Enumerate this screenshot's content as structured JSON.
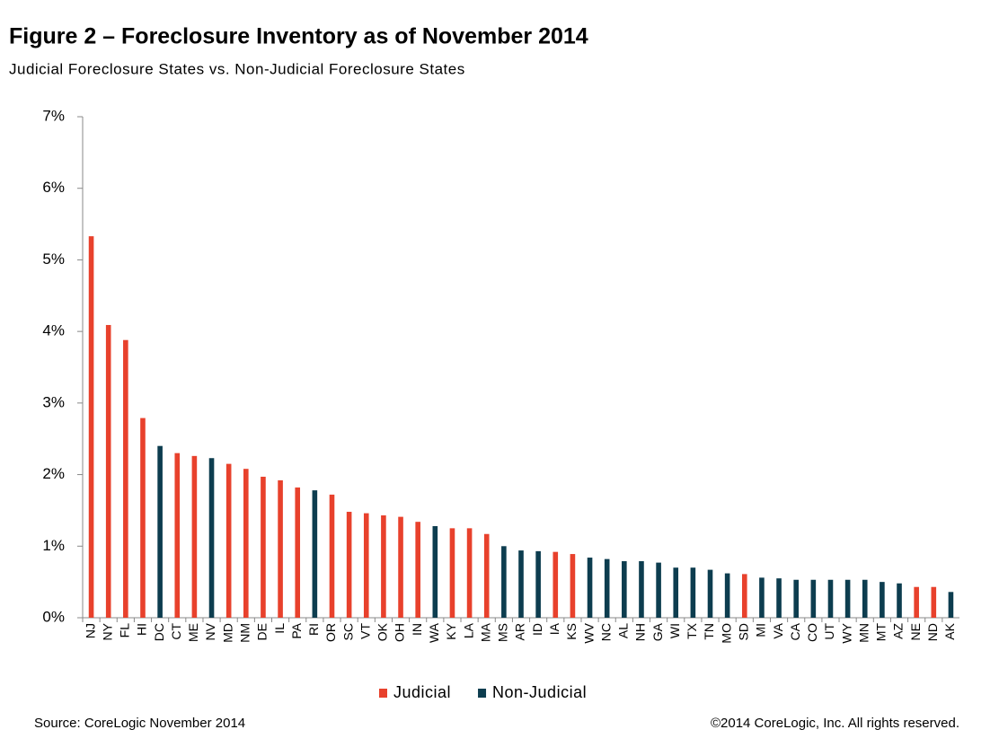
{
  "chart_data": {
    "type": "bar",
    "title": "Figure 2 – Foreclosure Inventory as of November 2014",
    "subtitle": "Judicial Foreclosure States vs. Non-Judicial Foreclosure States",
    "source": "Source: CoreLogic November 2014",
    "copyright": "©2014 CoreLogic, Inc. All rights reserved.",
    "categories": [
      "NJ",
      "NY",
      "FL",
      "HI",
      "DC",
      "CT",
      "ME",
      "NV",
      "MD",
      "NM",
      "DE",
      "IL",
      "PA",
      "RI",
      "OR",
      "SC",
      "VT",
      "OK",
      "OH",
      "IN",
      "WA",
      "KY",
      "LA",
      "MA",
      "MS",
      "AR",
      "ID",
      "IA",
      "KS",
      "WV",
      "NC",
      "AL",
      "NH",
      "GA",
      "WI",
      "TX",
      "TN",
      "MO",
      "SD",
      "MI",
      "VA",
      "CA",
      "CO",
      "UT",
      "WY",
      "MN",
      "MT",
      "AZ",
      "NE",
      "ND",
      "AK"
    ],
    "series": [
      {
        "name": "Judicial",
        "color": "#e8412c",
        "values": [
          5.33,
          4.09,
          3.88,
          2.79,
          null,
          2.3,
          2.26,
          null,
          2.15,
          2.08,
          1.97,
          1.92,
          1.82,
          null,
          1.72,
          1.48,
          1.46,
          1.43,
          1.41,
          1.34,
          null,
          1.25,
          1.25,
          1.17,
          null,
          null,
          null,
          0.92,
          0.89,
          null,
          null,
          null,
          null,
          null,
          null,
          null,
          null,
          null,
          0.61,
          null,
          null,
          null,
          null,
          null,
          null,
          null,
          null,
          null,
          0.43,
          0.43,
          null
        ]
      },
      {
        "name": "Non-Judicial",
        "color": "#0d3d4f",
        "values": [
          null,
          null,
          null,
          null,
          2.4,
          null,
          null,
          2.23,
          null,
          null,
          null,
          null,
          null,
          1.78,
          null,
          null,
          null,
          null,
          null,
          null,
          1.28,
          null,
          null,
          null,
          1.0,
          0.94,
          0.93,
          null,
          null,
          0.84,
          0.82,
          0.79,
          0.79,
          0.77,
          0.7,
          0.7,
          0.67,
          0.62,
          null,
          0.56,
          0.55,
          0.53,
          0.53,
          0.53,
          0.53,
          0.53,
          0.5,
          0.48,
          null,
          null,
          0.36
        ]
      }
    ],
    "ylim": [
      0,
      7
    ],
    "yticks": [
      {
        "value": 0,
        "label": "0%"
      },
      {
        "value": 1,
        "label": "1%"
      },
      {
        "value": 2,
        "label": "2%"
      },
      {
        "value": 3,
        "label": "3%"
      },
      {
        "value": 4,
        "label": "4%"
      },
      {
        "value": 5,
        "label": "5%"
      },
      {
        "value": 6,
        "label": "6%"
      },
      {
        "value": 7,
        "label": "7%"
      }
    ],
    "legend": "bottom"
  }
}
